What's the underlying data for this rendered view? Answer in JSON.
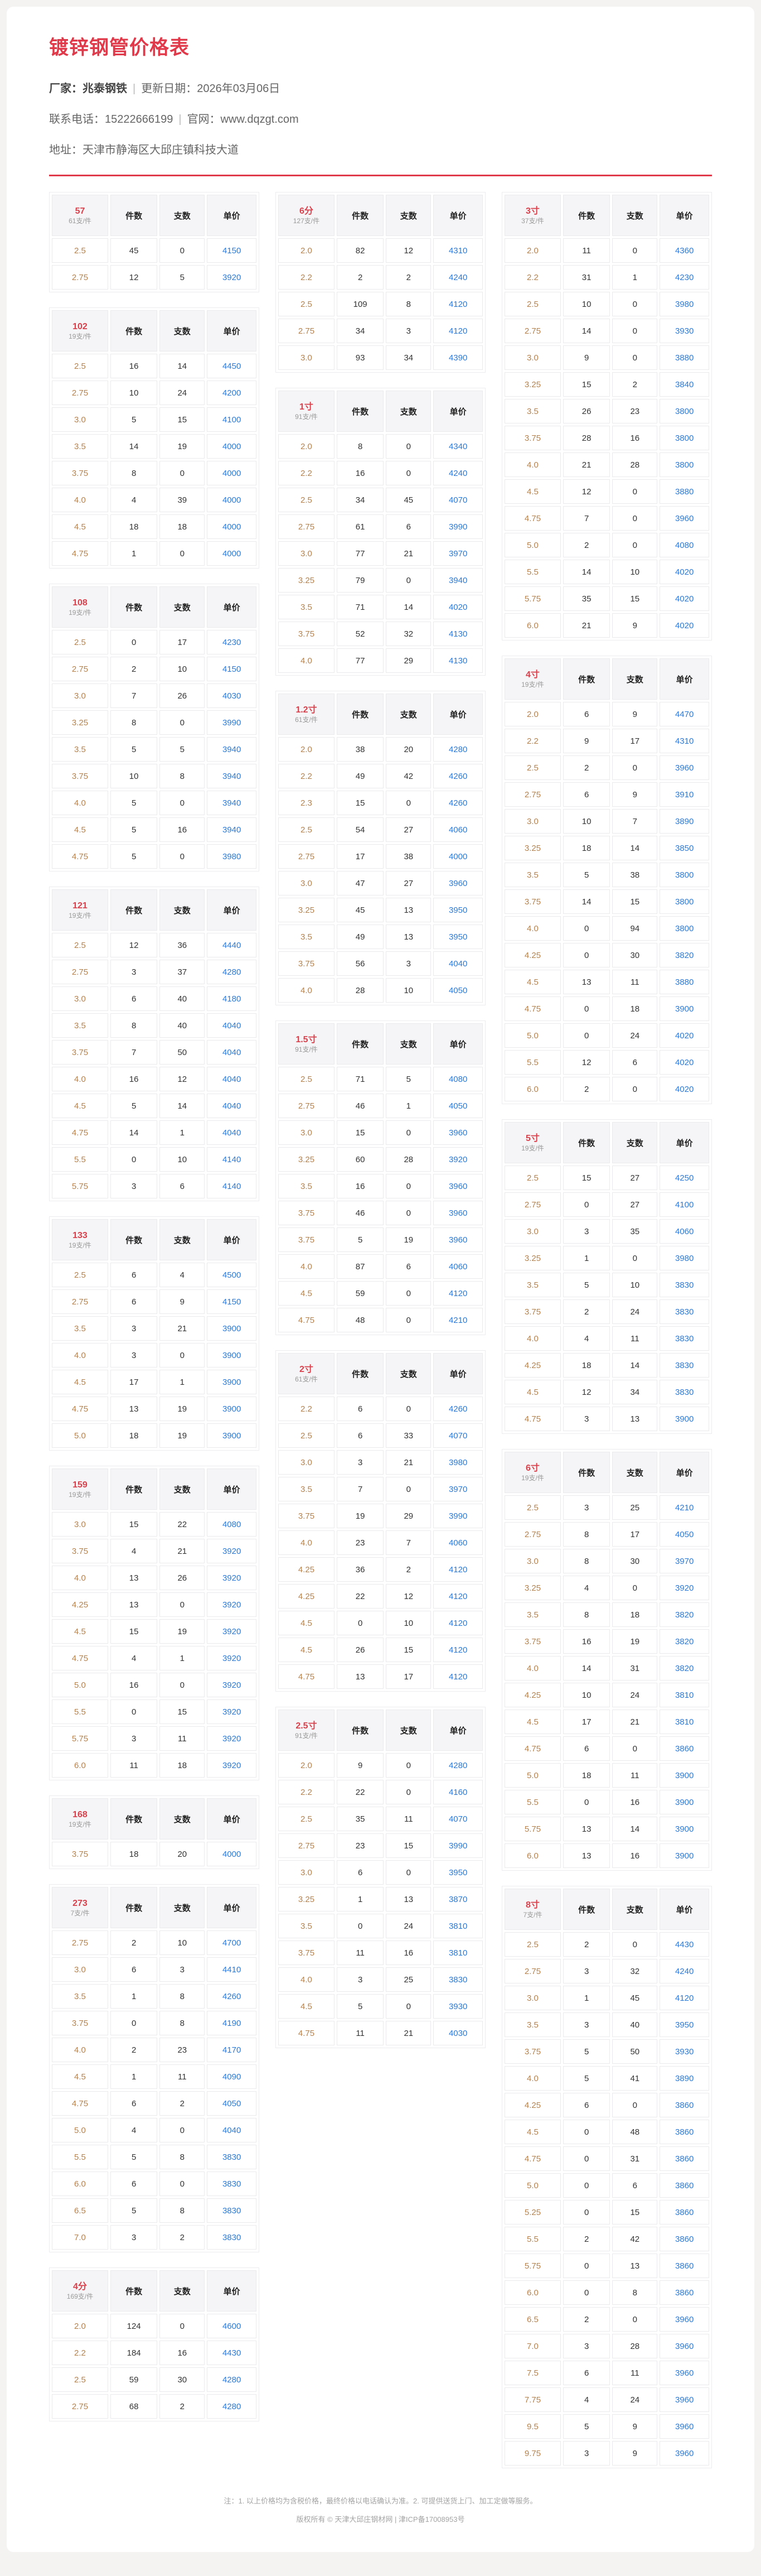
{
  "header": {
    "title": "镀锌钢管价格表",
    "line1": {
      "a": "厂家：兆泰钢铁",
      "sep": "|",
      "b": "更新日期：2026年03月06日"
    },
    "line2": {
      "a": "联系电话：15222666199",
      "sep": "|",
      "b": "官网：www.dqzgt.com"
    },
    "line3": {
      "a": "地址：天津市静海区大邱庄镇科技大道"
    }
  },
  "colors": {
    "accent_red": "#e0394a",
    "price_blue": "#2979d9",
    "spec_tan": "#b5824d",
    "header_gray": "#f5f5f7"
  },
  "table_columns_headers": [
    "件数",
    "支数",
    "单价"
  ],
  "tables": [
    {
      "column": 1,
      "spec": "57",
      "per_bundle": "61支/件",
      "rows": [
        [
          "2.5",
          45,
          0,
          4150
        ],
        [
          "2.75",
          12,
          5,
          3920
        ]
      ]
    },
    {
      "column": 1,
      "spec": "102",
      "per_bundle": "19支/件",
      "rows": [
        [
          "2.5",
          16,
          14,
          4450
        ],
        [
          "2.75",
          10,
          24,
          4200
        ],
        [
          "3.0",
          5,
          15,
          4100
        ],
        [
          "3.5",
          14,
          19,
          4000
        ],
        [
          "3.75",
          8,
          0,
          4000
        ],
        [
          "4.0",
          4,
          39,
          4000
        ],
        [
          "4.5",
          18,
          18,
          4000
        ],
        [
          "4.75",
          1,
          0,
          4000
        ]
      ]
    },
    {
      "column": 1,
      "spec": "108",
      "per_bundle": "19支/件",
      "rows": [
        [
          "2.5",
          0,
          17,
          4230
        ],
        [
          "2.75",
          2,
          10,
          4150
        ],
        [
          "3.0",
          7,
          26,
          4030
        ],
        [
          "3.25",
          8,
          0,
          3990
        ],
        [
          "3.5",
          5,
          5,
          3940
        ],
        [
          "3.75",
          10,
          8,
          3940
        ],
        [
          "4.0",
          5,
          0,
          3940
        ],
        [
          "4.5",
          5,
          16,
          3940
        ],
        [
          "4.75",
          5,
          0,
          3980
        ]
      ]
    },
    {
      "column": 1,
      "spec": "121",
      "per_bundle": "19支/件",
      "rows": [
        [
          "2.5",
          12,
          36,
          4440
        ],
        [
          "2.75",
          3,
          37,
          4280
        ],
        [
          "3.0",
          6,
          40,
          4180
        ],
        [
          "3.5",
          8,
          40,
          4040
        ],
        [
          "3.75",
          7,
          50,
          4040
        ],
        [
          "4.0",
          16,
          12,
          4040
        ],
        [
          "4.5",
          5,
          14,
          4040
        ],
        [
          "4.75",
          14,
          1,
          4040
        ],
        [
          "5.5",
          0,
          10,
          4140
        ],
        [
          "5.75",
          3,
          6,
          4140
        ]
      ]
    },
    {
      "column": 1,
      "spec": "133",
      "per_bundle": "19支/件",
      "rows": [
        [
          "2.5",
          6,
          4,
          4500
        ],
        [
          "2.75",
          6,
          9,
          4150
        ],
        [
          "3.5",
          3,
          21,
          3900
        ],
        [
          "4.0",
          3,
          0,
          3900
        ],
        [
          "4.5",
          17,
          1,
          3900
        ],
        [
          "4.75",
          13,
          19,
          3900
        ],
        [
          "5.0",
          18,
          19,
          3900
        ]
      ]
    },
    {
      "column": 1,
      "spec": "159",
      "per_bundle": "19支/件",
      "rows": [
        [
          "3.0",
          15,
          22,
          4080
        ],
        [
          "3.75",
          4,
          21,
          3920
        ],
        [
          "4.0",
          13,
          26,
          3920
        ],
        [
          "4.25",
          13,
          0,
          3920
        ],
        [
          "4.5",
          15,
          19,
          3920
        ],
        [
          "4.75",
          4,
          1,
          3920
        ],
        [
          "5.0",
          16,
          0,
          3920
        ],
        [
          "5.5",
          0,
          15,
          3920
        ],
        [
          "5.75",
          3,
          11,
          3920
        ],
        [
          "6.0",
          11,
          18,
          3920
        ]
      ]
    },
    {
      "column": 1,
      "spec": "168",
      "per_bundle": "19支/件",
      "rows": [
        [
          "3.75",
          18,
          20,
          4000
        ]
      ]
    },
    {
      "column": 1,
      "spec": "273",
      "per_bundle": "7支/件",
      "rows": [
        [
          "2.75",
          2,
          10,
          4700
        ],
        [
          "3.0",
          6,
          3,
          4410
        ],
        [
          "3.5",
          1,
          8,
          4260
        ],
        [
          "3.75",
          0,
          8,
          4190
        ],
        [
          "4.0",
          2,
          23,
          4170
        ],
        [
          "4.5",
          1,
          11,
          4090
        ],
        [
          "4.75",
          6,
          2,
          4050
        ],
        [
          "5.0",
          4,
          0,
          4040
        ],
        [
          "5.5",
          5,
          8,
          3830
        ],
        [
          "6.0",
          6,
          0,
          3830
        ],
        [
          "6.5",
          5,
          8,
          3830
        ],
        [
          "7.0",
          3,
          2,
          3830
        ]
      ]
    },
    {
      "column": 1,
      "spec": "4分",
      "per_bundle": "169支/件",
      "rows": [
        [
          "2.0",
          124,
          0,
          4600
        ],
        [
          "2.2",
          184,
          16,
          4430
        ],
        [
          "2.5",
          59,
          30,
          4280
        ],
        [
          "2.75",
          68,
          2,
          4280
        ]
      ]
    },
    {
      "column": 2,
      "spec": "6分",
      "per_bundle": "127支/件",
      "rows": [
        [
          "2.0",
          82,
          12,
          4310
        ],
        [
          "2.2",
          2,
          2,
          4240
        ],
        [
          "2.5",
          109,
          8,
          4120
        ],
        [
          "2.75",
          34,
          3,
          4120
        ],
        [
          "3.0",
          93,
          34,
          4390
        ]
      ]
    },
    {
      "column": 2,
      "spec": "1寸",
      "per_bundle": "91支/件",
      "rows": [
        [
          "2.0",
          8,
          0,
          4340
        ],
        [
          "2.2",
          16,
          0,
          4240
        ],
        [
          "2.5",
          34,
          45,
          4070
        ],
        [
          "2.75",
          61,
          6,
          3990
        ],
        [
          "3.0",
          77,
          21,
          3970
        ],
        [
          "3.25",
          79,
          0,
          3940
        ],
        [
          "3.5",
          71,
          14,
          4020
        ],
        [
          "3.75",
          52,
          32,
          4130
        ],
        [
          "4.0",
          77,
          29,
          4130
        ]
      ]
    },
    {
      "column": 2,
      "spec": "1.2寸",
      "per_bundle": "61支/件",
      "rows": [
        [
          "2.0",
          38,
          20,
          4280
        ],
        [
          "2.2",
          49,
          42,
          4260
        ],
        [
          "2.3",
          15,
          0,
          4260
        ],
        [
          "2.5",
          54,
          27,
          4060
        ],
        [
          "2.75",
          17,
          38,
          4000
        ],
        [
          "3.0",
          47,
          27,
          3960
        ],
        [
          "3.25",
          45,
          13,
          3950
        ],
        [
          "3.5",
          49,
          13,
          3950
        ],
        [
          "3.75",
          56,
          3,
          4040
        ],
        [
          "4.0",
          28,
          10,
          4050
        ]
      ]
    },
    {
      "column": 2,
      "spec": "1.5寸",
      "per_bundle": "91支/件",
      "rows": [
        [
          "2.5",
          71,
          5,
          4080
        ],
        [
          "2.75",
          46,
          1,
          4050
        ],
        [
          "3.0",
          15,
          0,
          3960
        ],
        [
          "3.25",
          60,
          28,
          3920
        ],
        [
          "3.5",
          16,
          0,
          3960
        ],
        [
          "3.75",
          46,
          0,
          3960
        ],
        [
          "3.75",
          5,
          19,
          3960
        ],
        [
          "4.0",
          87,
          6,
          4060
        ],
        [
          "4.5",
          59,
          0,
          4120
        ],
        [
          "4.75",
          48,
          0,
          4210
        ]
      ]
    },
    {
      "column": 2,
      "spec": "2寸",
      "per_bundle": "61支/件",
      "rows": [
        [
          "2.2",
          6,
          0,
          4260
        ],
        [
          "2.5",
          6,
          33,
          4070
        ],
        [
          "3.0",
          3,
          21,
          3980
        ],
        [
          "3.5",
          7,
          0,
          3970
        ],
        [
          "3.75",
          19,
          29,
          3990
        ],
        [
          "4.0",
          23,
          7,
          4060
        ],
        [
          "4.25",
          36,
          2,
          4120
        ],
        [
          "4.25",
          22,
          12,
          4120
        ],
        [
          "4.5",
          0,
          10,
          4120
        ],
        [
          "4.5",
          26,
          15,
          4120
        ],
        [
          "4.75",
          13,
          17,
          4120
        ]
      ]
    },
    {
      "column": 2,
      "spec": "2.5寸",
      "per_bundle": "91支/件",
      "rows": [
        [
          "2.0",
          9,
          0,
          4280
        ],
        [
          "2.2",
          22,
          0,
          4160
        ],
        [
          "2.5",
          35,
          11,
          4070
        ],
        [
          "2.75",
          23,
          15,
          3990
        ],
        [
          "3.0",
          6,
          0,
          3950
        ],
        [
          "3.25",
          1,
          13,
          3870
        ],
        [
          "3.5",
          0,
          24,
          3810
        ],
        [
          "3.75",
          11,
          16,
          3810
        ],
        [
          "4.0",
          3,
          25,
          3830
        ],
        [
          "4.5",
          5,
          0,
          3930
        ],
        [
          "4.75",
          11,
          21,
          4030
        ]
      ]
    },
    {
      "column": 3,
      "spec": "3寸",
      "per_bundle": "37支/件",
      "rows": [
        [
          "2.0",
          11,
          0,
          4360
        ],
        [
          "2.2",
          31,
          1,
          4230
        ],
        [
          "2.5",
          10,
          0,
          3980
        ],
        [
          "2.75",
          14,
          0,
          3930
        ],
        [
          "3.0",
          9,
          0,
          3880
        ],
        [
          "3.25",
          15,
          2,
          3840
        ],
        [
          "3.5",
          26,
          23,
          3800
        ],
        [
          "3.75",
          28,
          16,
          3800
        ],
        [
          "4.0",
          21,
          28,
          3800
        ],
        [
          "4.5",
          12,
          0,
          3880
        ],
        [
          "4.75",
          7,
          0,
          3960
        ],
        [
          "5.0",
          2,
          0,
          4080
        ],
        [
          "5.5",
          14,
          10,
          4020
        ],
        [
          "5.75",
          35,
          15,
          4020
        ],
        [
          "6.0",
          21,
          9,
          4020
        ]
      ]
    },
    {
      "column": 3,
      "spec": "4寸",
      "per_bundle": "19支/件",
      "rows": [
        [
          "2.0",
          6,
          9,
          4470
        ],
        [
          "2.2",
          9,
          17,
          4310
        ],
        [
          "2.5",
          2,
          0,
          3960
        ],
        [
          "2.75",
          6,
          9,
          3910
        ],
        [
          "3.0",
          10,
          7,
          3890
        ],
        [
          "3.25",
          18,
          14,
          3850
        ],
        [
          "3.5",
          5,
          38,
          3800
        ],
        [
          "3.75",
          14,
          15,
          3800
        ],
        [
          "4.0",
          0,
          94,
          3800
        ],
        [
          "4.25",
          0,
          30,
          3820
        ],
        [
          "4.5",
          13,
          11,
          3880
        ],
        [
          "4.75",
          0,
          18,
          3900
        ],
        [
          "5.0",
          0,
          24,
          4020
        ],
        [
          "5.5",
          12,
          6,
          4020
        ],
        [
          "6.0",
          2,
          0,
          4020
        ]
      ]
    },
    {
      "column": 3,
      "spec": "5寸",
      "per_bundle": "19支/件",
      "rows": [
        [
          "2.5",
          15,
          27,
          4250
        ],
        [
          "2.75",
          0,
          27,
          4100
        ],
        [
          "3.0",
          3,
          35,
          4060
        ],
        [
          "3.25",
          1,
          0,
          3980
        ],
        [
          "3.5",
          5,
          10,
          3830
        ],
        [
          "3.75",
          2,
          24,
          3830
        ],
        [
          "4.0",
          4,
          11,
          3830
        ],
        [
          "4.25",
          18,
          14,
          3830
        ],
        [
          "4.5",
          12,
          34,
          3830
        ],
        [
          "4.75",
          3,
          13,
          3900
        ]
      ]
    },
    {
      "column": 3,
      "spec": "6寸",
      "per_bundle": "19支/件",
      "rows": [
        [
          "2.5",
          3,
          25,
          4210
        ],
        [
          "2.75",
          8,
          17,
          4050
        ],
        [
          "3.0",
          8,
          30,
          3970
        ],
        [
          "3.25",
          4,
          0,
          3920
        ],
        [
          "3.5",
          8,
          18,
          3820
        ],
        [
          "3.75",
          16,
          19,
          3820
        ],
        [
          "4.0",
          14,
          31,
          3820
        ],
        [
          "4.25",
          10,
          24,
          3810
        ],
        [
          "4.5",
          17,
          21,
          3810
        ],
        [
          "4.75",
          6,
          0,
          3860
        ],
        [
          "5.0",
          18,
          11,
          3900
        ],
        [
          "5.5",
          0,
          16,
          3900
        ],
        [
          "5.75",
          13,
          14,
          3900
        ],
        [
          "6.0",
          13,
          16,
          3900
        ]
      ]
    },
    {
      "column": 3,
      "spec": "8寸",
      "per_bundle": "7支/件",
      "rows": [
        [
          "2.5",
          2,
          0,
          4430
        ],
        [
          "2.75",
          3,
          32,
          4240
        ],
        [
          "3.0",
          1,
          45,
          4120
        ],
        [
          "3.5",
          3,
          40,
          3950
        ],
        [
          "3.75",
          5,
          50,
          3930
        ],
        [
          "4.0",
          5,
          41,
          3890
        ],
        [
          "4.25",
          6,
          0,
          3860
        ],
        [
          "4.5",
          0,
          48,
          3860
        ],
        [
          "4.75",
          0,
          31,
          3860
        ],
        [
          "5.0",
          0,
          6,
          3860
        ],
        [
          "5.25",
          0,
          15,
          3860
        ],
        [
          "5.5",
          2,
          42,
          3860
        ],
        [
          "5.75",
          0,
          13,
          3860
        ],
        [
          "6.0",
          0,
          8,
          3860
        ],
        [
          "6.5",
          2,
          0,
          3960
        ],
        [
          "7.0",
          3,
          28,
          3960
        ],
        [
          "7.5",
          6,
          11,
          3960
        ],
        [
          "7.75",
          4,
          24,
          3960
        ],
        [
          "9.5",
          5,
          9,
          3960
        ],
        [
          "9.75",
          3,
          9,
          3960
        ]
      ]
    }
  ],
  "footer": {
    "note": "注：1. 以上价格均为含税价格，最终价格以电话确认为准。2. 可提供送货上门、加工定做等服务。",
    "copyright": "版权所有 © 天津大邱庄钢材网 | 津ICP备17008953号"
  }
}
